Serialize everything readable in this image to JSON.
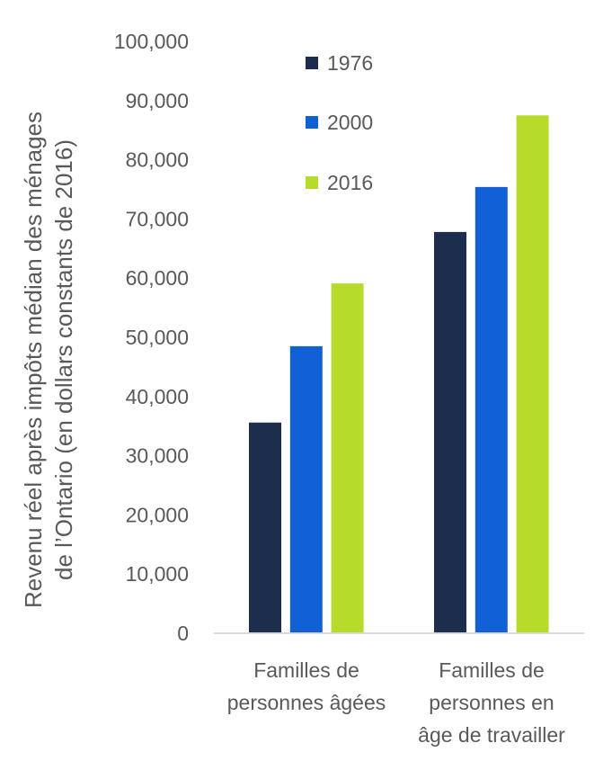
{
  "chart_data": {
    "type": "bar",
    "title": "",
    "xlabel": "",
    "ylabel": [
      "Revenu réel après impôts médian des ménages",
      "de l’Ontario (en dollars constants de 2016)"
    ],
    "ylim": [
      0,
      100000
    ],
    "yticks": [
      0,
      10000,
      20000,
      30000,
      40000,
      50000,
      60000,
      70000,
      80000,
      90000,
      100000
    ],
    "ytick_labels": [
      "0",
      "10,000",
      "20,000",
      "30,000",
      "40,000",
      "50,000",
      "60,000",
      "70,000",
      "80,000",
      "90,000",
      "100,000"
    ],
    "grid": false,
    "legend_position": "top-center",
    "categories": [
      [
        "Familles de",
        "personnes âgées"
      ],
      [
        "Familles de",
        "personnes en",
        "âge de travailler"
      ]
    ],
    "series": [
      {
        "name": "1976",
        "color": "#1d2d4d",
        "values": [
          35600,
          67800
        ]
      },
      {
        "name": "2000",
        "color": "#1160d6",
        "values": [
          48500,
          75400
        ]
      },
      {
        "name": "2016",
        "color": "#b6db2a",
        "values": [
          59100,
          87500
        ]
      }
    ]
  }
}
